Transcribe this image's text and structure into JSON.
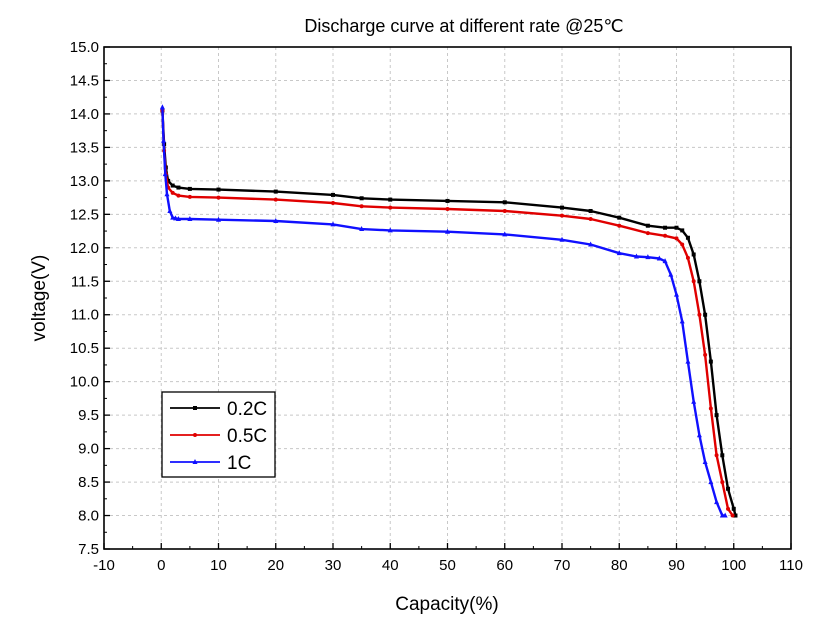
{
  "chart_data": {
    "type": "line",
    "title": "Discharge curve at different rate @25℃",
    "xlabel": "Capacity(%)",
    "ylabel": "voltage(V)",
    "xlim": [
      -10,
      110
    ],
    "ylim": [
      7.5,
      15.0
    ],
    "x_ticks": [
      "-10",
      "0",
      "10",
      "20",
      "30",
      "40",
      "50",
      "60",
      "70",
      "80",
      "90",
      "100",
      "110"
    ],
    "y_ticks": [
      "7.5",
      "8.0",
      "8.5",
      "9.0",
      "9.5",
      "10.0",
      "10.5",
      "11.0",
      "11.5",
      "12.0",
      "12.5",
      "13.0",
      "13.5",
      "14.0",
      "14.5",
      "15.0"
    ],
    "grid": true,
    "legend_position": "bottom-left",
    "series": [
      {
        "name": "0.2C",
        "color": "#000000",
        "marker": "square",
        "x": [
          0.2,
          0.5,
          0.8,
          1.2,
          2,
          3,
          5,
          10,
          20,
          30,
          35,
          40,
          50,
          60,
          70,
          75,
          80,
          85,
          88,
          90,
          91,
          92,
          93,
          94,
          95,
          96,
          97,
          98,
          99,
          100,
          100.3
        ],
        "y": [
          14.05,
          13.55,
          13.2,
          13.0,
          12.93,
          12.9,
          12.88,
          12.87,
          12.84,
          12.79,
          12.74,
          12.72,
          12.7,
          12.68,
          12.6,
          12.55,
          12.45,
          12.33,
          12.3,
          12.3,
          12.26,
          12.15,
          11.9,
          11.5,
          11.0,
          10.3,
          9.5,
          8.9,
          8.4,
          8.1,
          8.0
        ]
      },
      {
        "name": "0.5C",
        "color": "#e00000",
        "marker": "circle",
        "x": [
          0.2,
          0.5,
          0.8,
          1.2,
          2,
          3,
          5,
          10,
          20,
          30,
          35,
          40,
          50,
          60,
          70,
          75,
          80,
          85,
          88,
          90,
          91,
          92,
          93,
          94,
          95,
          96,
          97,
          98,
          99,
          99.8
        ],
        "y": [
          14.05,
          13.45,
          13.1,
          12.9,
          12.82,
          12.78,
          12.76,
          12.75,
          12.72,
          12.67,
          12.62,
          12.6,
          12.58,
          12.55,
          12.48,
          12.43,
          12.33,
          12.22,
          12.18,
          12.14,
          12.05,
          11.85,
          11.5,
          11.0,
          10.4,
          9.6,
          8.9,
          8.5,
          8.1,
          8.0
        ]
      },
      {
        "name": "1C",
        "color": "#1010ff",
        "marker": "triangle",
        "x": [
          0.2,
          0.4,
          0.7,
          1.0,
          1.5,
          2.0,
          2.5,
          3,
          5,
          10,
          20,
          30,
          35,
          40,
          50,
          60,
          70,
          75,
          80,
          83,
          85,
          87,
          88,
          89,
          90,
          91,
          92,
          93,
          94,
          95,
          96,
          97,
          98,
          98.5
        ],
        "y": [
          14.1,
          13.6,
          13.1,
          12.8,
          12.55,
          12.45,
          12.44,
          12.43,
          12.43,
          12.42,
          12.4,
          12.35,
          12.28,
          12.26,
          12.24,
          12.2,
          12.12,
          12.05,
          11.92,
          11.87,
          11.86,
          11.84,
          11.8,
          11.6,
          11.3,
          10.9,
          10.3,
          9.7,
          9.2,
          8.8,
          8.5,
          8.2,
          8.0,
          8.0
        ]
      }
    ]
  }
}
